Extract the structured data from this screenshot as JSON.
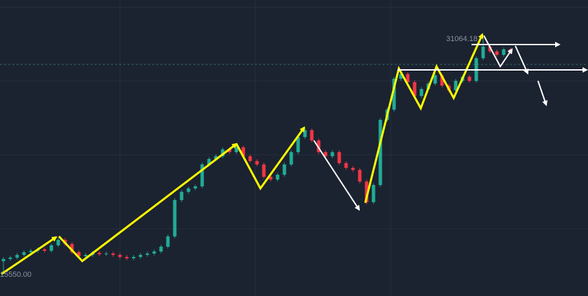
{
  "chart_data": {
    "type": "candlestick",
    "ylim": [
      14103,
      33642
    ],
    "up_color": "#22ab94",
    "down_color": "#f23645",
    "grid": true,
    "annotations": [
      {
        "text": "31064.18"
      },
      {
        "text": "15550.00"
      }
    ],
    "ohlc": [
      [
        16400,
        16665,
        15550,
        16545
      ],
      [
        16545,
        16756,
        16425,
        16636
      ],
      [
        16636,
        16937,
        16516,
        16817
      ],
      [
        16817,
        17117,
        16697,
        16997
      ],
      [
        16997,
        17208,
        16877,
        17088
      ],
      [
        17088,
        17298,
        16968,
        17178
      ],
      [
        17178,
        17298,
        16968,
        17088
      ],
      [
        17088,
        17570,
        16968,
        17450
      ],
      [
        17450,
        17932,
        17330,
        17812
      ],
      [
        17812,
        17932,
        17420,
        17540
      ],
      [
        17540,
        17660,
        16877,
        16997
      ],
      [
        16997,
        17117,
        16606,
        16726
      ],
      [
        16726,
        16937,
        16606,
        16817
      ],
      [
        16817,
        17072,
        16697,
        16952
      ],
      [
        16952,
        17072,
        16742,
        16862
      ],
      [
        16862,
        17027,
        16742,
        16907
      ],
      [
        16907,
        17027,
        16697,
        16817
      ],
      [
        16817,
        16937,
        16561,
        16681
      ],
      [
        16681,
        16801,
        16470,
        16590
      ],
      [
        16590,
        16801,
        16470,
        16681
      ],
      [
        16681,
        16937,
        16561,
        16817
      ],
      [
        16817,
        17027,
        16697,
        16907
      ],
      [
        16907,
        17163,
        16787,
        17043
      ],
      [
        17043,
        17479,
        16923,
        17359
      ],
      [
        17359,
        18157,
        17239,
        18037
      ],
      [
        18037,
        20555,
        17917,
        20435
      ],
      [
        20435,
        21097,
        20315,
        20977
      ],
      [
        20977,
        21324,
        20857,
        21204
      ],
      [
        21204,
        21460,
        21084,
        21340
      ],
      [
        21340,
        22907,
        21220,
        22787
      ],
      [
        22787,
        23269,
        22667,
        23149
      ],
      [
        23149,
        23450,
        23029,
        23330
      ],
      [
        23330,
        23902,
        23210,
        23782
      ],
      [
        23782,
        23902,
        23481,
        23601
      ],
      [
        23601,
        24038,
        23481,
        23918
      ],
      [
        23918,
        24038,
        23210,
        23330
      ],
      [
        23330,
        23450,
        22893,
        23013
      ],
      [
        23013,
        23133,
        22667,
        22787
      ],
      [
        22787,
        22907,
        21853,
        21973
      ],
      [
        21973,
        22093,
        21672,
        21792
      ],
      [
        21792,
        22228,
        21672,
        22108
      ],
      [
        22108,
        22907,
        21988,
        22787
      ],
      [
        22787,
        23721,
        22667,
        23601
      ],
      [
        23601,
        24716,
        23481,
        24596
      ],
      [
        24596,
        25168,
        24476,
        25048
      ],
      [
        25048,
        25168,
        24250,
        24370
      ],
      [
        24370,
        24490,
        23481,
        23601
      ],
      [
        23601,
        23721,
        23210,
        23330
      ],
      [
        23330,
        23721,
        23210,
        23601
      ],
      [
        23601,
        23721,
        22757,
        22877
      ],
      [
        22877,
        22997,
        22441,
        22561
      ],
      [
        22561,
        22681,
        22305,
        22425
      ],
      [
        22425,
        22545,
        21536,
        21656
      ],
      [
        21656,
        21776,
        20179,
        20299
      ],
      [
        20299,
        21550,
        20179,
        21430
      ],
      [
        21430,
        25847,
        21310,
        25727
      ],
      [
        25727,
        26525,
        25607,
        26405
      ],
      [
        26405,
        28561,
        26285,
        28441
      ],
      [
        28441,
        28877,
        28321,
        28757
      ],
      [
        28757,
        28877,
        28095,
        28215
      ],
      [
        28215,
        28335,
        27190,
        27310
      ],
      [
        27310,
        27882,
        27190,
        27762
      ],
      [
        27762,
        28244,
        27642,
        28124
      ],
      [
        28124,
        28787,
        28004,
        28667
      ],
      [
        28667,
        28787,
        27868,
        27988
      ],
      [
        27988,
        28108,
        27552,
        27672
      ],
      [
        27672,
        28425,
        27552,
        28305
      ],
      [
        28305,
        28696,
        28185,
        28576
      ],
      [
        28576,
        28696,
        28185,
        28305
      ],
      [
        28305,
        29918,
        28185,
        29798
      ],
      [
        29798,
        31064.18,
        29678,
        30566
      ],
      [
        30566,
        30686,
        30130,
        30250
      ],
      [
        30250,
        30370,
        29904,
        30024
      ],
      [
        30024,
        30506,
        29904,
        30386
      ],
      [
        30386,
        30506,
        30085,
        30205
      ]
    ]
  }
}
